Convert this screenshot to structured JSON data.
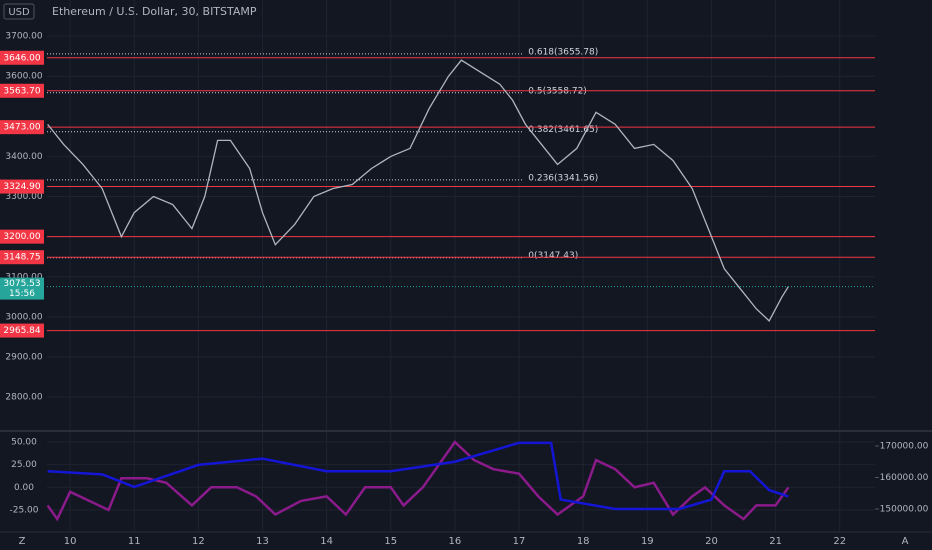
{
  "ui": {
    "currency": "USD",
    "scale_buttons": [
      "Z",
      "A"
    ]
  },
  "chart_data": [
    {
      "type": "line",
      "title": "Ethereum / U.S. Dollar, 30, BITSTAMP",
      "xlim": [
        9.64,
        22.55
      ],
      "ylim": [
        2718,
        3790
      ],
      "yticks": [
        {
          "value": 2800,
          "label": "2800.00"
        },
        {
          "value": 2900,
          "label": "2900.00"
        },
        {
          "value": 3000,
          "label": "3000.00"
        },
        {
          "value": 3100,
          "label": "3100.00"
        },
        {
          "value": 3300,
          "label": "3300.00"
        },
        {
          "value": 3400,
          "label": "3400.00"
        },
        {
          "value": 3600,
          "label": "3600.00"
        },
        {
          "value": 3700,
          "label": "3700.00"
        }
      ],
      "x": [
        9.65,
        9.9,
        10.2,
        10.5,
        10.8,
        11.0,
        11.3,
        11.6,
        11.9,
        12.1,
        12.3,
        12.5,
        12.8,
        13.0,
        13.2,
        13.5,
        13.8,
        14.1,
        14.4,
        14.7,
        15.0,
        15.3,
        15.6,
        15.9,
        16.1,
        16.4,
        16.7,
        16.9,
        17.1,
        17.4,
        17.6,
        17.9,
        18.2,
        18.5,
        18.8,
        19.1,
        19.4,
        19.7,
        19.9,
        20.2,
        20.5,
        20.7,
        20.9,
        21.1,
        21.2
      ],
      "series": [
        {
          "color": "#b2b5be",
          "values": [
            3480,
            3430,
            3380,
            3320,
            3200,
            3260,
            3300,
            3280,
            3220,
            3300,
            3440,
            3440,
            3370,
            3260,
            3180,
            3230,
            3300,
            3320,
            3330,
            3370,
            3400,
            3420,
            3520,
            3600,
            3640,
            3610,
            3580,
            3540,
            3480,
            3420,
            3380,
            3420,
            3510,
            3480,
            3420,
            3430,
            3390,
            3320,
            3240,
            3120,
            3060,
            3020,
            2990,
            3050,
            3075.53
          ]
        }
      ],
      "levels_color": "#f23645",
      "levels": [
        {
          "value": 3646,
          "label": "3646.00"
        },
        {
          "value": 3563.7,
          "label": "3563.70"
        },
        {
          "value": 3473,
          "label": "3473.00"
        },
        {
          "value": 3324.9,
          "label": "3324.90"
        },
        {
          "value": 3200,
          "label": "3200.00"
        },
        {
          "value": 3148.75,
          "label": "3148.75"
        },
        {
          "value": 2965.84,
          "label": "2965.84"
        }
      ],
      "fib_end_x": 17.05,
      "fib": [
        {
          "value": 3655.78,
          "label": "0.618(3655.78)"
        },
        {
          "value": 3558.72,
          "label": "0.5(3558.72)"
        },
        {
          "value": 3461.65,
          "label": "0.382(3461.65)"
        },
        {
          "value": 3341.56,
          "label": "0.236(3341.56)"
        },
        {
          "value": 3147.43,
          "label": "0(3147.43)"
        }
      ],
      "last_price": {
        "value": 3075.53,
        "label": "3075.53"
      },
      "countdown": "15:56"
    },
    {
      "type": "line",
      "xlim": [
        9.64,
        22.55
      ],
      "xticks": [
        10,
        11,
        12,
        13,
        14,
        15,
        16,
        17,
        18,
        19,
        20,
        21,
        22
      ],
      "ylim": [
        -49.3,
        61.0
      ],
      "yticks": [
        {
          "value": 50,
          "label": "50.00"
        },
        {
          "value": 25,
          "label": "25.00"
        },
        {
          "value": 0,
          "label": "0.00"
        },
        {
          "value": -25,
          "label": "-25.00"
        }
      ],
      "y2lim": [
        142700,
        174445
      ],
      "y2ticks": [
        {
          "value": 170000,
          "label": "170000.00"
        },
        {
          "value": 160000,
          "label": "160000.00"
        },
        {
          "value": 150000,
          "label": "150000.00"
        }
      ],
      "series": [
        {
          "color": "#8b1a8b",
          "x": [
            9.65,
            9.8,
            10.0,
            10.3,
            10.6,
            10.8,
            11.2,
            11.5,
            11.9,
            12.2,
            12.6,
            12.9,
            13.2,
            13.6,
            14.0,
            14.3,
            14.6,
            15.0,
            15.2,
            15.5,
            15.8,
            16.0,
            16.3,
            16.6,
            17.0,
            17.3,
            17.6,
            18.0,
            18.2,
            18.5,
            18.8,
            19.1,
            19.4,
            19.7,
            19.9,
            20.2,
            20.5,
            20.7,
            21.0,
            21.2
          ],
          "values": [
            -20,
            -35,
            -5,
            -15,
            -25,
            10,
            10,
            5,
            -20,
            0,
            0,
            -10,
            -30,
            -15,
            -10,
            -30,
            0,
            0,
            -20,
            0,
            30,
            50,
            30,
            20,
            15,
            -10,
            -30,
            -10,
            30,
            20,
            0,
            5,
            -30,
            -10,
            0,
            -20,
            -35,
            -20,
            -20,
            0
          ]
        },
        {
          "color": "#1515d6",
          "axis": "y2",
          "x": [
            9.65,
            10.5,
            11.0,
            12.0,
            13.0,
            14.0,
            15.0,
            16.0,
            17.0,
            17.5,
            17.65,
            18.5,
            19.5,
            20.0,
            20.2,
            20.6,
            20.9,
            21.2
          ],
          "values": [
            162000,
            161000,
            157000,
            164000,
            166000,
            162000,
            162000,
            165000,
            171000,
            171000,
            153000,
            150000,
            150000,
            153000,
            162000,
            162000,
            156000,
            154000
          ]
        }
      ]
    }
  ]
}
